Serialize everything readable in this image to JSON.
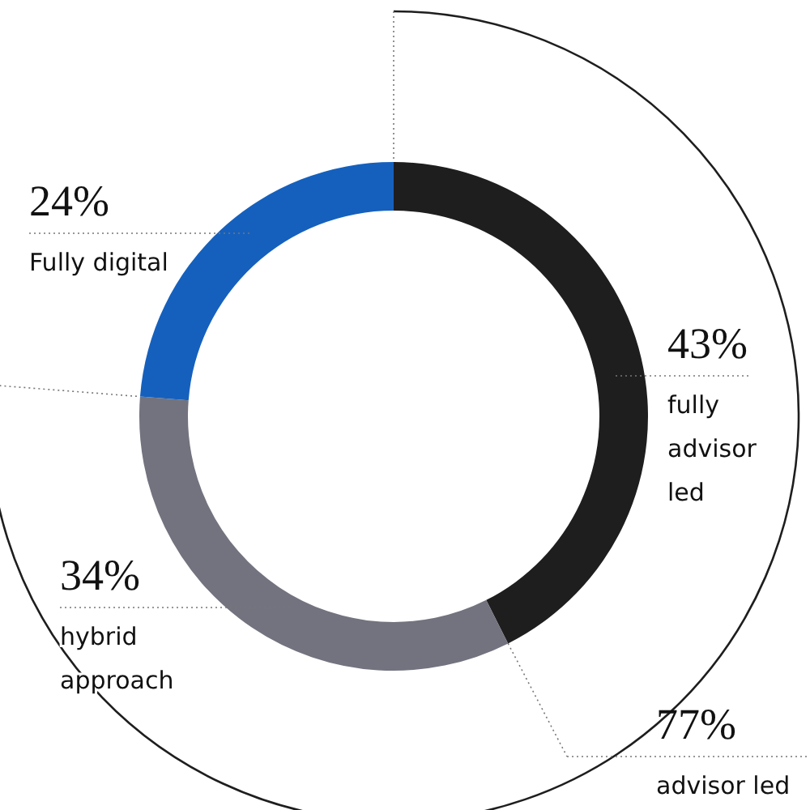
{
  "chart_data": {
    "type": "donut",
    "categories": [
      "fully advisor led",
      "hybrid approach",
      "Fully digital"
    ],
    "values": [
      43,
      34,
      24
    ],
    "value_labels": [
      "43%",
      "34%",
      "24%"
    ],
    "colors": [
      "#1e1e1e",
      "#72737e",
      "#1560bd"
    ],
    "annotations": [
      "77%",
      "advisor led"
    ]
  }
}
